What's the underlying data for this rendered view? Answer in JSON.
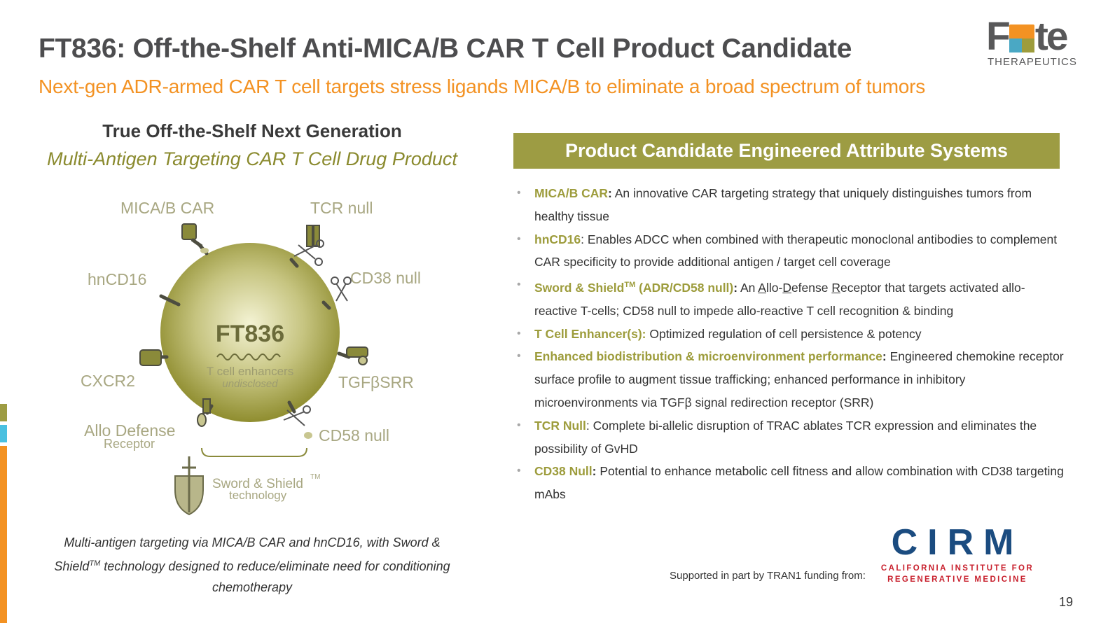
{
  "header": {
    "title": "FT836: Off-the-Shelf Anti-MICA/B CAR T Cell Product Candidate",
    "subtitle": "Next-gen ADR-armed CAR T cell targets stress ligands MICA/B to eliminate a broad spectrum of tumors"
  },
  "logo": {
    "word_pre": "F",
    "word_post": "te",
    "sub": "THERAPEUTICS"
  },
  "colors": {
    "olive": "#9d9c43",
    "orange": "#f39223",
    "blue": "#4aa8c4",
    "title_gray": "#4d4d4f"
  },
  "left": {
    "heading": "True Off-the-Shelf Next Generation",
    "subheading": "Multi-Antigen Targeting CAR T Cell Drug Product",
    "diagram": {
      "center_label": "FT836",
      "center_sub1": "T cell enhancers",
      "center_sub2": "undisclosed",
      "labels": {
        "mica_car": "MICA/B CAR",
        "tcr_null": "TCR null",
        "hncd16": "hnCD16",
        "cd38_null": "CD38 null",
        "cxcr2": "CXCR2",
        "tgfb_srr": "TGFβSRR",
        "allo_defense": "Allo Defense",
        "receptor": "Receptor",
        "cd58_null": "CD58 null",
        "sword_shield": "Sword & Shield",
        "tm": "TM",
        "technology": "technology"
      }
    },
    "caption_part1": "Multi-antigen targeting via MICA/B CAR and hnCD16, with Sword & Shield",
    "caption_tm": "TM",
    "caption_part2": " technology designed to reduce/eliminate need for conditioning chemotherapy"
  },
  "right": {
    "panel_title": "Product Candidate Engineered Attribute Systems",
    "bullets": {
      "b1_label": "MICA/B CAR",
      "b1_colon": ":",
      "b1_text": " An innovative CAR targeting strategy that uniquely distinguishes tumors from healthy tissue",
      "b2_label": "hnCD16",
      "b2_text": ": Enables ADCC when combined with therapeutic monoclonal antibodies to complement CAR specificity to provide additional antigen / target cell coverage",
      "b3_label": "Sword & Shield",
      "b3_tm": "TM",
      "b3_label2": " (ADR/CD58 null)",
      "b3_colon": ":",
      "b3_t1": " An ",
      "b3_u1": "A",
      "b3_t2": "llo-",
      "b3_u2": "D",
      "b3_t3": "efense ",
      "b3_u3": "R",
      "b3_t4": "eceptor that targets activated allo-reactive T-cells; CD58 null to impede allo-reactive T cell recognition & binding",
      "b4_label": "T Cell Enhancer(s):",
      "b4_text": " Optimized regulation of cell persistence & potency",
      "b5_label": "Enhanced biodistribution & microenvironment performance",
      "b5_colon": ":",
      "b5_text": " Engineered chemokine receptor surface profile to augment tissue trafficking; enhanced performance in inhibitory microenvironments via TGFβ signal redirection receptor (SRR)",
      "b6_label": "TCR Null",
      "b6_text": ": Complete bi-allelic disruption of TRAC ablates TCR expression and eliminates the possibility of GvHD",
      "b7_label": "CD38 Null",
      "b7_colon": ":",
      "b7_text": " Potential to enhance metabolic cell fitness and allow combination with CD38 targeting mAbs"
    }
  },
  "footer": {
    "support_text": "Supported in part by TRAN1 funding from:",
    "cirm_word": "CIRM",
    "cirm_line1": "CALIFORNIA INSTITUTE FOR",
    "cirm_line2": "REGENERATIVE MEDICINE",
    "page_number": "19"
  }
}
